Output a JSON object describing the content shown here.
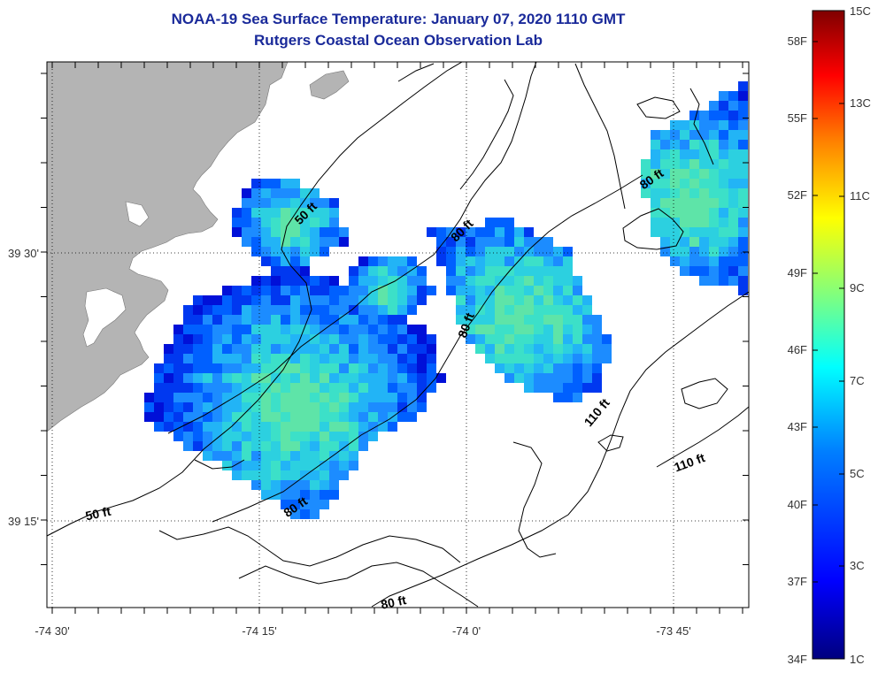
{
  "title_line1": "NOAA-19 Sea Surface Temperature:  January 07, 2020 1110 GMT",
  "title_line2": "Rutgers Coastal Ocean Observation Lab",
  "axes": {
    "lon_ticks": [
      "-74 30'",
      "-74 15'",
      "-74 0'",
      "-73 45'"
    ],
    "lat_ticks": [
      "39 30'",
      "39 15'"
    ]
  },
  "contour_labels": [
    "50 ft",
    "50 ft",
    "80 ft",
    "80 ft",
    "80 ft",
    "80 ft",
    "80 ft",
    "110 ft",
    "110 ft"
  ],
  "colorbar": {
    "fahrenheit_labels": [
      "58F",
      "55F",
      "52F",
      "49F",
      "46F",
      "43F",
      "40F",
      "37F",
      "34F"
    ],
    "celsius_labels": [
      "15C",
      "13C",
      "11C",
      "9C",
      "7C",
      "5C",
      "3C",
      "1C"
    ],
    "scale_colors": [
      "#00007f",
      "#0000ff",
      "#007fff",
      "#00ffff",
      "#7fff7f",
      "#ffff00",
      "#ff7f00",
      "#ff0000",
      "#7f0000"
    ]
  },
  "colors": {
    "land": "#b4b4b4",
    "title": "#1a2a9a"
  }
}
